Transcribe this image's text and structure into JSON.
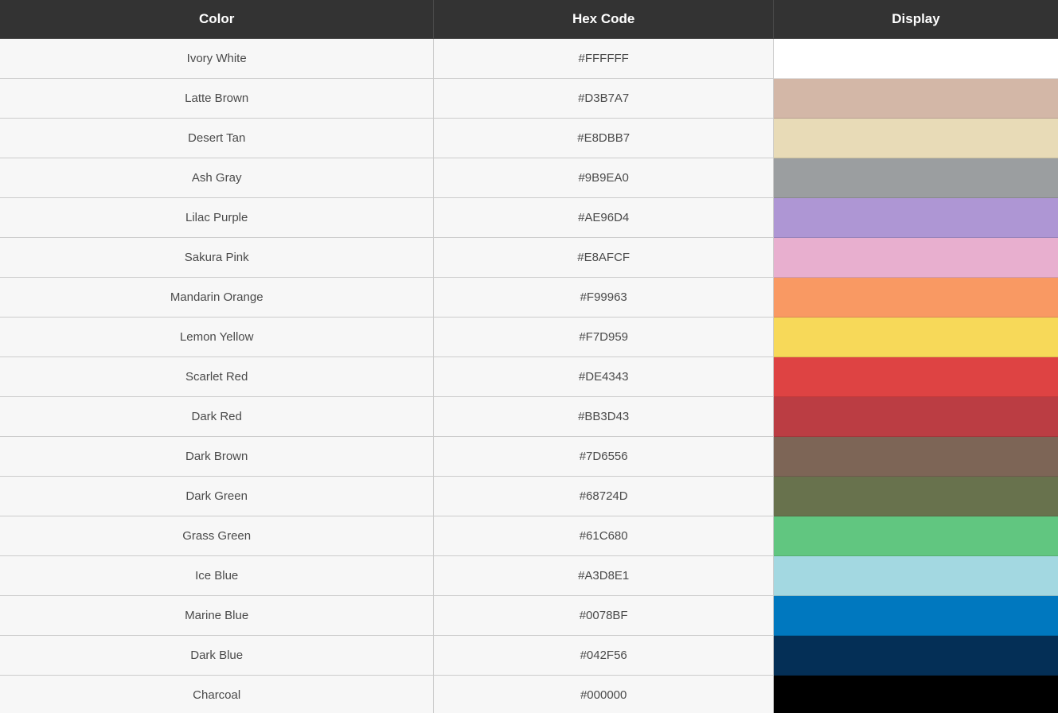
{
  "table": {
    "columns": [
      {
        "label": "Color"
      },
      {
        "label": "Hex Code"
      },
      {
        "label": "Display"
      }
    ],
    "rows": [
      {
        "name": "Ivory White",
        "hex": "#FFFFFF"
      },
      {
        "name": "Latte Brown",
        "hex": "#D3B7A7"
      },
      {
        "name": "Desert Tan",
        "hex": "#E8DBB7"
      },
      {
        "name": "Ash Gray",
        "hex": "#9B9EA0"
      },
      {
        "name": "Lilac Purple",
        "hex": "#AE96D4"
      },
      {
        "name": "Sakura Pink",
        "hex": "#E8AFCF"
      },
      {
        "name": "Mandarin Orange",
        "hex": "#F99963"
      },
      {
        "name": "Lemon Yellow",
        "hex": "#F7D959"
      },
      {
        "name": "Scarlet Red",
        "hex": "#DE4343"
      },
      {
        "name": "Dark Red",
        "hex": "#BB3D43"
      },
      {
        "name": "Dark Brown",
        "hex": "#7D6556"
      },
      {
        "name": "Dark Green",
        "hex": "#68724D"
      },
      {
        "name": "Grass Green",
        "hex": "#61C680"
      },
      {
        "name": "Ice Blue",
        "hex": "#A3D8E1"
      },
      {
        "name": "Marine Blue",
        "hex": "#0078BF"
      },
      {
        "name": "Dark Blue",
        "hex": "#042F56"
      },
      {
        "name": "Charcoal",
        "hex": "#000000"
      }
    ]
  },
  "theme": {
    "header_bg": "#333333",
    "header_text": "#FFFFFF",
    "row_bg": "#F7F7F7",
    "border": "#CCCCCC",
    "cell_text": "#4A4A4A"
  }
}
